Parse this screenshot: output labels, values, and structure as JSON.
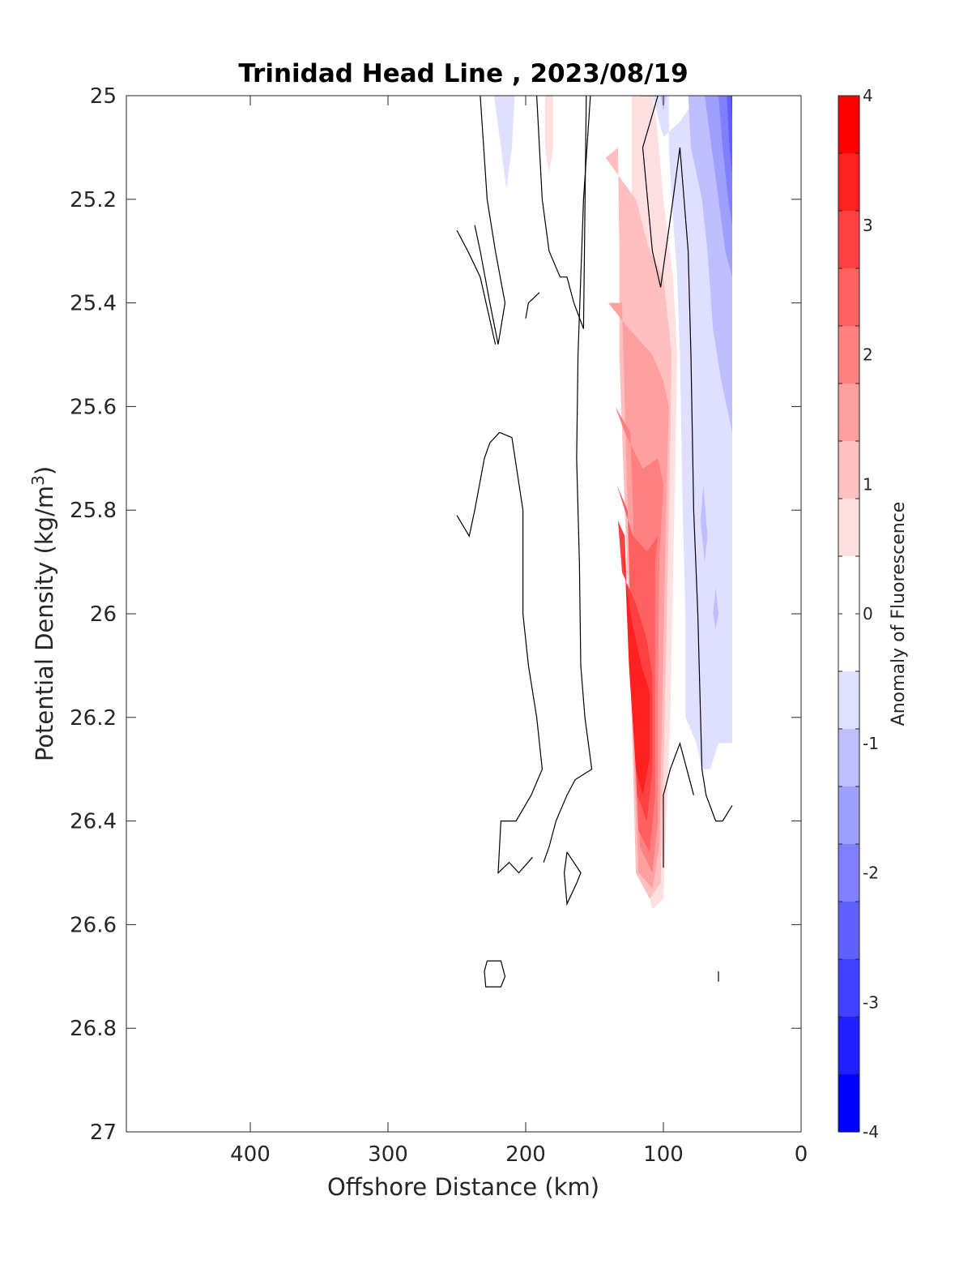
{
  "chart_data": {
    "type": "contour",
    "title": "Trinidad Head Line , 2023/08/19",
    "xlabel": "Offshore Distance (km)",
    "ylabel": "Potential Density (kg/m",
    "ylabel_sup": "3",
    "ylabel_close": ")",
    "xlim": [
      490,
      0
    ],
    "ylim": [
      25,
      27
    ],
    "x_reversed": true,
    "y_reversed": true,
    "xticks": [
      400,
      300,
      200,
      100,
      0
    ],
    "xtick_labels": [
      "400",
      "300",
      "200",
      "100",
      "0"
    ],
    "yticks": [
      25,
      25.2,
      25.4,
      25.6,
      25.8,
      26,
      26.2,
      26.4,
      26.6,
      26.8,
      27
    ],
    "ytick_labels": [
      "25",
      "25.2",
      "25.4",
      "25.6",
      "25.8",
      "26",
      "26.2",
      "26.4",
      "26.6",
      "26.8",
      "27"
    ],
    "grid": false,
    "colorbar": {
      "label": "Anomaly of Fluorescence",
      "range": [
        -4,
        4
      ],
      "level_step": 0.5,
      "ticks": [
        4,
        3,
        2,
        1,
        0,
        -1,
        -2,
        -3,
        -4
      ],
      "tick_labels": [
        "4",
        "3",
        "2",
        "1",
        "0",
        "-1",
        "-2",
        "-3",
        "-4"
      ],
      "colors_top_to_bottom": [
        "#ff0000",
        "#ff2020",
        "#ff4040",
        "#ff6060",
        "#ff8080",
        "#ffa0a0",
        "#ffc0c0",
        "#ffe0e0",
        "#ffffff",
        "#ffffff",
        "#e0e0ff",
        "#c0c0ff",
        "#a0a0ff",
        "#8080ff",
        "#6060ff",
        "#4040ff",
        "#2020ff",
        "#0000ff"
      ]
    },
    "filled_regions": [
      {
        "level": 0.5,
        "points": [
          [
            143,
            25.0
          ],
          [
            123,
            25.0
          ],
          [
            123,
            25.3
          ],
          [
            123,
            25.5
          ],
          [
            120,
            25.8
          ],
          [
            117,
            26.0
          ],
          [
            115,
            26.3
          ],
          [
            114,
            26.5
          ],
          [
            108,
            26.57
          ],
          [
            100,
            26.55
          ],
          [
            95,
            26.2
          ],
          [
            92,
            25.8
          ],
          [
            90,
            25.5
          ],
          [
            93,
            25.35
          ],
          [
            100,
            25.2
          ],
          [
            105,
            25.05
          ],
          [
            108,
            25.0
          ]
        ]
      },
      {
        "level": 0.5,
        "points": [
          [
            186,
            25.0
          ],
          [
            180,
            25.0
          ],
          [
            180,
            25.1
          ],
          [
            183,
            25.15
          ],
          [
            186,
            25.1
          ]
        ]
      },
      {
        "level": 1.0,
        "points": [
          [
            142,
            25.12
          ],
          [
            133,
            25.1
          ],
          [
            132,
            25.3
          ],
          [
            132,
            25.5
          ],
          [
            128,
            25.8
          ],
          [
            125,
            26.0
          ],
          [
            122,
            26.3
          ],
          [
            120,
            26.5
          ],
          [
            110,
            26.55
          ],
          [
            102,
            26.52
          ],
          [
            99,
            26.2
          ],
          [
            96,
            25.8
          ],
          [
            94,
            25.5
          ],
          [
            100,
            25.35
          ],
          [
            110,
            25.3
          ],
          [
            120,
            25.2
          ]
        ]
      },
      {
        "level": 1.5,
        "points": [
          [
            140,
            25.4
          ],
          [
            130,
            25.4
          ],
          [
            128,
            25.6
          ],
          [
            126,
            25.8
          ],
          [
            124,
            26.0
          ],
          [
            121,
            26.3
          ],
          [
            118,
            26.5
          ],
          [
            108,
            26.53
          ],
          [
            103,
            26.45
          ],
          [
            101,
            26.2
          ],
          [
            98,
            25.8
          ],
          [
            96,
            25.6
          ],
          [
            100,
            25.55
          ],
          [
            108,
            25.5
          ],
          [
            125,
            25.45
          ]
        ]
      },
      {
        "level": 2.0,
        "points": [
          [
            135,
            25.6
          ],
          [
            124,
            25.65
          ],
          [
            122,
            25.8
          ],
          [
            121,
            26.0
          ],
          [
            119,
            26.3
          ],
          [
            117,
            26.45
          ],
          [
            108,
            26.5
          ],
          [
            104,
            26.4
          ],
          [
            104,
            26.2
          ],
          [
            103,
            25.9
          ],
          [
            100,
            25.75
          ],
          [
            104,
            25.7
          ],
          [
            115,
            25.72
          ],
          [
            128,
            25.65
          ]
        ]
      },
      {
        "level": 2.5,
        "points": [
          [
            134,
            25.75
          ],
          [
            126,
            25.8
          ],
          [
            124,
            26.0
          ],
          [
            121,
            26.25
          ],
          [
            118,
            26.42
          ],
          [
            110,
            26.46
          ],
          [
            106,
            26.35
          ],
          [
            106,
            26.2
          ],
          [
            106,
            25.9
          ],
          [
            104,
            25.85
          ],
          [
            112,
            25.88
          ],
          [
            122,
            25.85
          ]
        ]
      },
      {
        "level": 3.0,
        "points": [
          [
            133,
            25.82
          ],
          [
            128,
            25.85
          ],
          [
            126,
            26.0
          ],
          [
            122,
            26.15
          ],
          [
            119,
            26.35
          ],
          [
            112,
            26.4
          ],
          [
            108,
            26.3
          ],
          [
            108,
            26.12
          ],
          [
            112,
            26.05
          ],
          [
            120,
            25.98
          ],
          [
            130,
            25.92
          ]
        ]
      },
      {
        "level": 3.5,
        "points": [
          [
            130,
            25.88
          ],
          [
            128,
            25.9
          ],
          [
            125,
            26.1
          ],
          [
            120,
            26.3
          ],
          [
            115,
            26.35
          ],
          [
            110,
            26.28
          ],
          [
            110,
            26.15
          ],
          [
            116,
            26.1
          ],
          [
            124,
            26.0
          ]
        ]
      },
      {
        "level": -0.5,
        "points": [
          [
            108,
            25.0
          ],
          [
            96,
            25.0
          ],
          [
            96,
            25.1
          ],
          [
            94,
            25.2
          ],
          [
            90,
            25.35
          ],
          [
            88,
            25.5
          ],
          [
            86,
            25.8
          ],
          [
            84,
            26.0
          ],
          [
            84,
            26.2
          ],
          [
            76,
            26.25
          ],
          [
            72,
            26.3
          ],
          [
            66,
            26.3
          ],
          [
            60,
            26.25
          ],
          [
            52,
            26.25
          ],
          [
            50,
            26.25
          ],
          [
            50,
            25.0
          ],
          [
            75,
            25.0
          ],
          [
            88,
            25.05
          ],
          [
            100,
            25.08
          ]
        ]
      },
      {
        "level": -0.5,
        "points": [
          [
            223,
            25.0
          ],
          [
            208,
            25.0
          ],
          [
            210,
            25.1
          ],
          [
            214,
            25.18
          ],
          [
            218,
            25.1
          ]
        ]
      },
      {
        "level": -1.0,
        "points": [
          [
            93,
            25.0
          ],
          [
            82,
            25.0
          ],
          [
            80,
            25.1
          ],
          [
            72,
            25.2
          ],
          [
            68,
            25.3
          ],
          [
            64,
            25.45
          ],
          [
            58,
            25.55
          ],
          [
            50,
            25.65
          ],
          [
            50,
            25.0
          ]
        ]
      },
      {
        "level": -1.0,
        "points": [
          [
            102,
            25.0
          ],
          [
            98,
            25.0
          ],
          [
            100,
            25.03
          ]
        ]
      },
      {
        "level": -1.0,
        "points": [
          [
            71,
            25.75
          ],
          [
            68,
            25.85
          ],
          [
            70,
            25.9
          ],
          [
            73,
            25.82
          ]
        ]
      },
      {
        "level": -1.0,
        "points": [
          [
            62,
            25.95
          ],
          [
            60,
            26.0
          ],
          [
            62,
            26.03
          ],
          [
            64,
            26.0
          ]
        ]
      },
      {
        "level": -1.5,
        "points": [
          [
            78,
            25.0
          ],
          [
            70,
            25.0
          ],
          [
            65,
            25.1
          ],
          [
            60,
            25.2
          ],
          [
            55,
            25.3
          ],
          [
            50,
            25.35
          ],
          [
            50,
            25.0
          ]
        ]
      },
      {
        "level": -2.0,
        "points": [
          [
            66,
            25.0
          ],
          [
            60,
            25.0
          ],
          [
            57,
            25.1
          ],
          [
            53,
            25.2
          ],
          [
            50,
            25.25
          ],
          [
            50,
            25.0
          ]
        ]
      },
      {
        "level": -2.5,
        "points": [
          [
            58,
            25.0
          ],
          [
            54,
            25.0
          ],
          [
            52,
            25.1
          ],
          [
            50,
            25.15
          ],
          [
            50,
            25.0
          ]
        ]
      },
      {
        "level": -3.0,
        "points": [
          [
            54,
            25.0
          ],
          [
            51,
            25.0
          ],
          [
            50,
            25.05
          ],
          [
            50,
            25.0
          ]
        ]
      }
    ],
    "zero_contours": [
      [
        [
          233,
          25.0
        ],
        [
          228,
          25.2
        ],
        [
          222,
          25.3
        ],
        [
          215,
          25.4
        ],
        [
          220,
          25.48
        ],
        [
          226,
          25.4
        ],
        [
          233,
          25.3
        ],
        [
          237,
          25.25
        ]
      ],
      [
        [
          250,
          25.26
        ],
        [
          242,
          25.3
        ],
        [
          233,
          25.35
        ],
        [
          222,
          25.48
        ]
      ],
      [
        [
          192,
          25.0
        ],
        [
          188,
          25.2
        ],
        [
          183,
          25.3
        ],
        [
          175,
          25.35
        ],
        [
          170,
          25.35
        ],
        [
          165,
          25.4
        ],
        [
          158,
          25.45
        ],
        [
          156,
          25.0
        ]
      ],
      [
        [
          200,
          25.43
        ],
        [
          198,
          25.4
        ],
        [
          190,
          25.38
        ]
      ],
      [
        [
          153,
          25.0
        ],
        [
          158,
          25.2
        ],
        [
          160,
          25.35
        ],
        [
          162,
          25.5
        ],
        [
          163,
          25.7
        ],
        [
          161,
          25.9
        ],
        [
          160,
          26.1
        ],
        [
          157,
          26.2
        ],
        [
          152,
          26.3
        ],
        [
          164,
          26.32
        ],
        [
          170,
          26.35
        ],
        [
          178,
          26.4
        ],
        [
          183,
          26.45
        ],
        [
          187,
          26.48
        ]
      ],
      [
        [
          219,
          25.65
        ],
        [
          210,
          25.66
        ],
        [
          202,
          25.8
        ],
        [
          202,
          26.0
        ],
        [
          198,
          26.1
        ],
        [
          192,
          26.2
        ],
        [
          188,
          26.3
        ],
        [
          196,
          26.35
        ],
        [
          207,
          26.4
        ],
        [
          218,
          26.4
        ],
        [
          220,
          26.5
        ],
        [
          212,
          26.48
        ],
        [
          205,
          26.5
        ],
        [
          195,
          26.47
        ]
      ],
      [
        [
          250,
          25.81
        ],
        [
          241,
          25.85
        ],
        [
          237,
          25.8
        ],
        [
          230,
          25.7
        ],
        [
          226,
          25.67
        ],
        [
          219,
          25.65
        ]
      ],
      [
        [
          117,
          25.0
        ],
        [
          104,
          25.0
        ],
        [
          115,
          25.1
        ],
        [
          108,
          25.3
        ],
        [
          102,
          25.37
        ],
        [
          93,
          25.2
        ],
        [
          88,
          25.1
        ],
        [
          82,
          25.3
        ],
        [
          80,
          25.5
        ],
        [
          78,
          25.8
        ],
        [
          75,
          26.0
        ],
        [
          72,
          26.3
        ],
        [
          69,
          26.35
        ],
        [
          62,
          26.4
        ],
        [
          57,
          26.4
        ],
        [
          50,
          26.37
        ]
      ],
      [
        [
          100,
          26.49
        ],
        [
          100,
          26.35
        ],
        [
          95,
          26.3
        ],
        [
          88,
          26.25
        ],
        [
          83,
          26.3
        ],
        [
          78,
          26.35
        ]
      ],
      [
        [
          170,
          26.46
        ],
        [
          165,
          26.48
        ],
        [
          160,
          26.5
        ],
        [
          163,
          26.52
        ],
        [
          170,
          26.56
        ],
        [
          172,
          26.5
        ],
        [
          170,
          26.46
        ]
      ],
      [
        [
          228,
          26.67
        ],
        [
          218,
          26.67
        ],
        [
          215,
          26.7
        ],
        [
          218,
          26.72
        ],
        [
          229,
          26.72
        ],
        [
          230,
          26.69
        ],
        [
          228,
          26.67
        ]
      ],
      [
        [
          60,
          26.69
        ],
        [
          60,
          26.71
        ]
      ]
    ]
  }
}
